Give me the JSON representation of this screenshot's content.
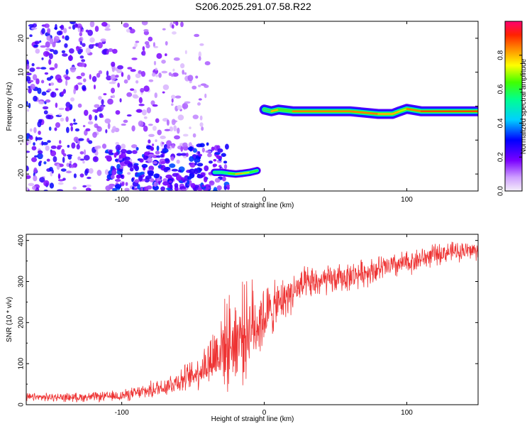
{
  "title": "S206.2025.291.07.58.R22",
  "chart_data": [
    {
      "type": "heatmap",
      "xlabel": "Height of straight line (km)",
      "ylabel": "Frequency (Hz)",
      "xlim": [
        -167,
        150
      ],
      "ylim": [
        -25,
        25
      ],
      "xticks": [
        -100,
        0,
        100
      ],
      "yticks": [
        -20,
        -10,
        0,
        10,
        20
      ],
      "grid": false,
      "colorbar": {
        "label": "Normalized spectral amplitude",
        "range": [
          0,
          1
        ],
        "ticks": [
          "0.0",
          "0.2",
          "0.4",
          "0.6",
          "0.8"
        ],
        "tick_values": [
          0.0,
          0.2,
          0.4,
          0.6,
          0.8
        ]
      },
      "ridge": {
        "x": [
          -35,
          -30,
          -25,
          -20,
          -15,
          -10,
          -5,
          0,
          5,
          10,
          20,
          40,
          60,
          80,
          90,
          95,
          100,
          110,
          130,
          150
        ],
        "y": [
          -19.5,
          -19.5,
          -19.8,
          -20.0,
          -19.8,
          -19.5,
          -19.0,
          -1.0,
          -1.5,
          -1.0,
          -1.5,
          -1.5,
          -1.5,
          -2.3,
          -2.3,
          -1.5,
          -0.8,
          -1.5,
          -1.5,
          -1.5
        ],
        "amplitude": [
          0.5,
          0.55,
          0.65,
          0.8,
          0.7,
          0.6,
          0.5,
          0.5,
          0.8,
          0.6,
          0.85,
          0.85,
          0.85,
          0.8,
          0.8,
          0.7,
          0.85,
          0.9,
          0.9,
          0.9
        ]
      }
    },
    {
      "type": "line",
      "xlabel": "Height of straight line (km)",
      "ylabel": "SNR (10 * v/v)",
      "xlim": [
        -167,
        150
      ],
      "ylim": [
        0,
        415
      ],
      "xticks": [
        -100,
        0,
        100
      ],
      "yticks": [
        0,
        100,
        200,
        300,
        400
      ],
      "grid": false,
      "series": [
        {
          "color": "#ee3333",
          "x": [
            -167,
            -150,
            -130,
            -110,
            -100,
            -90,
            -80,
            -70,
            -60,
            -50,
            -45,
            -40,
            -35,
            -30,
            -25,
            -20,
            -15,
            -10,
            -5,
            0,
            5,
            10,
            15,
            20,
            25,
            30,
            40,
            50,
            60,
            70,
            80,
            90,
            100,
            110,
            120,
            130,
            140,
            150
          ],
          "mean": [
            18,
            18,
            18,
            20,
            22,
            28,
            35,
            45,
            58,
            72,
            85,
            100,
            120,
            140,
            150,
            160,
            175,
            190,
            200,
            215,
            230,
            245,
            262,
            275,
            285,
            292,
            300,
            305,
            312,
            322,
            330,
            337,
            345,
            355,
            365,
            372,
            375,
            375
          ],
          "spread": [
            10,
            10,
            11,
            12,
            14,
            16,
            20,
            25,
            30,
            36,
            45,
            60,
            85,
            95,
            110,
            115,
            115,
            110,
            100,
            80,
            65,
            55,
            50,
            48,
            45,
            42,
            38,
            35,
            34,
            33,
            33,
            32,
            30,
            28,
            26,
            24,
            24,
            24
          ]
        }
      ]
    }
  ]
}
